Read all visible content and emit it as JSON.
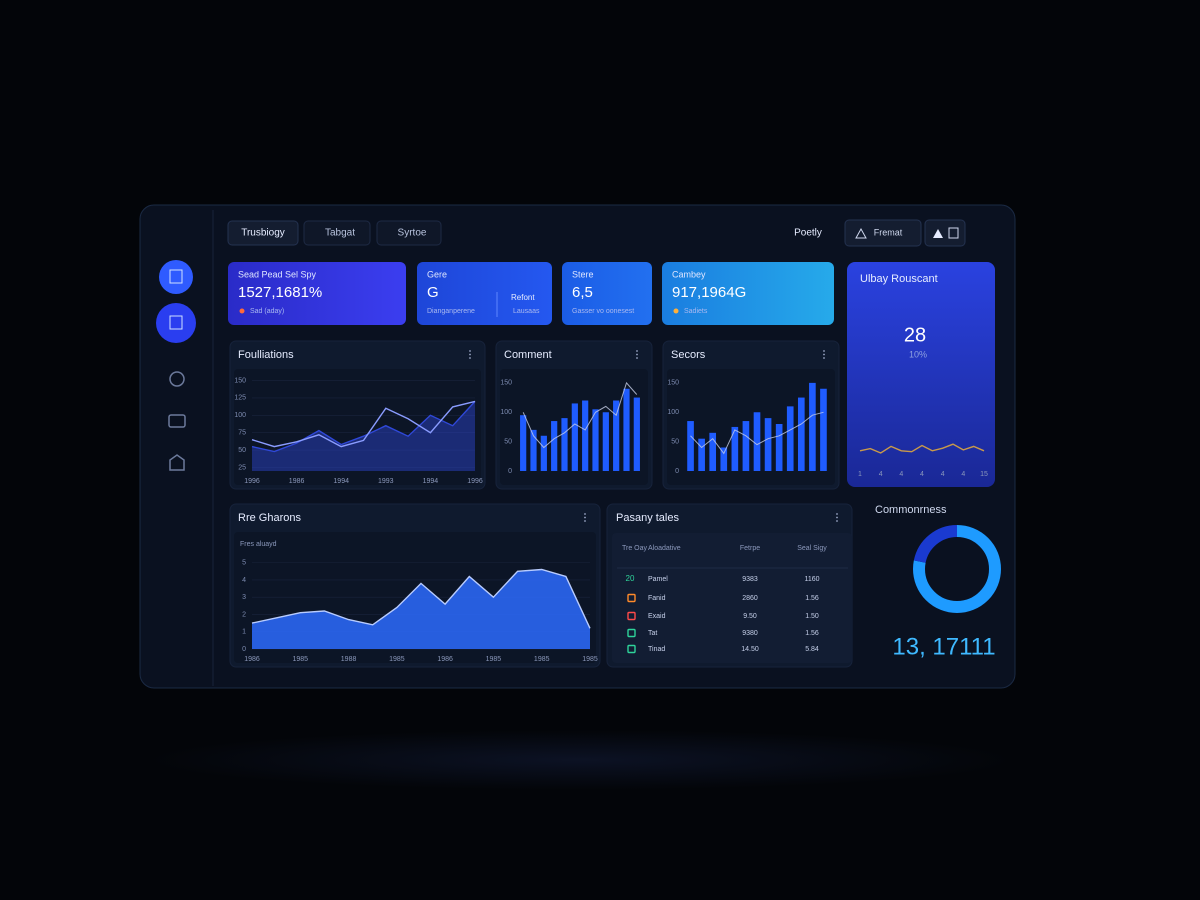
{
  "tabs": [
    "Trusbiogy",
    "Tabgat",
    "Syrtoe"
  ],
  "header": {
    "user": "Poetly",
    "dropdown": "Fremat"
  },
  "kpis": [
    {
      "label": "Sead Pead Sel Spy",
      "value": "1527,1681%",
      "note": "Sad (aday)"
    },
    {
      "label": "Gere",
      "value": "G",
      "note": "Dianganperene",
      "extra": "Refont",
      "extra_note": "Lausaas"
    },
    {
      "label": "Stere",
      "value": "6,5",
      "note": "Gasser vo oonesest"
    },
    {
      "label": "Cambey",
      "value": "917,1964G",
      "note": "Sadiets"
    }
  ],
  "side_card": {
    "title": "Ulbay Rouscant",
    "value": "28",
    "change": "10%"
  },
  "table": {
    "title": "Pasany tales",
    "columns": [
      "Tre Oay",
      "Aloadative",
      "Fetrpe",
      "Seal Sigy"
    ],
    "rows": [
      {
        "tag": "20",
        "cells": [
          "Pamel",
          "9383",
          "1160"
        ]
      },
      {
        "cells": [
          "Fanid",
          "2860",
          "1.56"
        ]
      },
      {
        "cells": [
          "Exaid",
          "9.50",
          "1.50"
        ]
      },
      {
        "cells": [
          "Tat",
          "9380",
          "1.56"
        ]
      },
      {
        "cells": [
          "Tinad",
          "14.50",
          "5.84"
        ]
      }
    ]
  },
  "chart_data": [
    {
      "type": "line",
      "title": "Foulliations",
      "categories": [
        "1996",
        null,
        "1986",
        null,
        "1994",
        null,
        "1993",
        null,
        "1994",
        null,
        "1996"
      ],
      "series": [
        {
          "color": "#2f48d8",
          "fill": true,
          "values": [
            55,
            48,
            60,
            78,
            58,
            70,
            85,
            70,
            100,
            85,
            120
          ]
        },
        {
          "color": "#8a9cff",
          "values": [
            65,
            55,
            62,
            72,
            55,
            64,
            110,
            95,
            75,
            112,
            120
          ]
        }
      ],
      "ylim": [
        20,
        155
      ],
      "yticks": [
        25,
        50,
        75,
        100,
        125,
        150
      ],
      "grid": true
    },
    {
      "type": "bar",
      "title": "Comment",
      "series": [
        {
          "type": "bar",
          "color": "#1f5cff",
          "values": [
            95,
            70,
            60,
            85,
            90,
            115,
            120,
            105,
            100,
            120,
            140,
            125
          ]
        },
        {
          "type": "line",
          "color": "#c8d0e8",
          "values": [
            100,
            60,
            40,
            55,
            65,
            80,
            70,
            100,
            110,
            95,
            150,
            130
          ]
        }
      ],
      "ylim": [
        0,
        160
      ],
      "yticks": [
        0,
        50,
        100,
        150
      ],
      "grid": false
    },
    {
      "type": "bar",
      "title": "Secors",
      "series": [
        {
          "type": "bar",
          "color": "#1f5cff",
          "values": [
            85,
            55,
            65,
            40,
            75,
            85,
            100,
            90,
            80,
            110,
            125,
            150,
            140
          ]
        },
        {
          "type": "line",
          "color": "#c8d0e8",
          "values": [
            60,
            40,
            55,
            30,
            70,
            60,
            45,
            55,
            60,
            70,
            80,
            95,
            100
          ]
        }
      ],
      "ylim": [
        0,
        160
      ],
      "yticks": [
        0,
        50,
        100,
        150
      ],
      "grid": false
    },
    {
      "type": "area",
      "title": "Rre Gharons",
      "subtitle": "Fres  aluayd",
      "categories": [
        "1986",
        null,
        "1985",
        null,
        "1988",
        null,
        "1985",
        null,
        "1986",
        null,
        "1985",
        null,
        "1985",
        null,
        "1985"
      ],
      "series": [
        {
          "color": "#2d6bff",
          "values": [
            1.5,
            1.8,
            2.1,
            2.2,
            1.7,
            1.4,
            2.4,
            3.8,
            2.6,
            4.2,
            3.0,
            4.5,
            4.6,
            4.2,
            1.2
          ]
        }
      ],
      "ylim": [
        0,
        5.5
      ],
      "yticks": [
        0,
        1,
        2,
        3,
        4,
        5
      ],
      "grid": true
    },
    {
      "type": "pie",
      "title": "Commonrness",
      "total_label": "13, 17111",
      "values": [
        78,
        22
      ],
      "colors": [
        "#1e9bff",
        "#1a3ad0"
      ]
    },
    {
      "type": "line",
      "categories": [
        "1",
        null,
        "4",
        null,
        "4",
        null,
        "4",
        null,
        "4",
        null,
        "4",
        null,
        "15"
      ],
      "series": [
        {
          "color": "#c99a4a",
          "values": [
            3,
            3.5,
            2.5,
            4,
            3,
            2.8,
            4.2,
            3,
            3.6,
            4.5,
            3.2,
            4,
            3
          ]
        }
      ],
      "ylim": [
        0,
        10
      ],
      "grid": false
    }
  ]
}
